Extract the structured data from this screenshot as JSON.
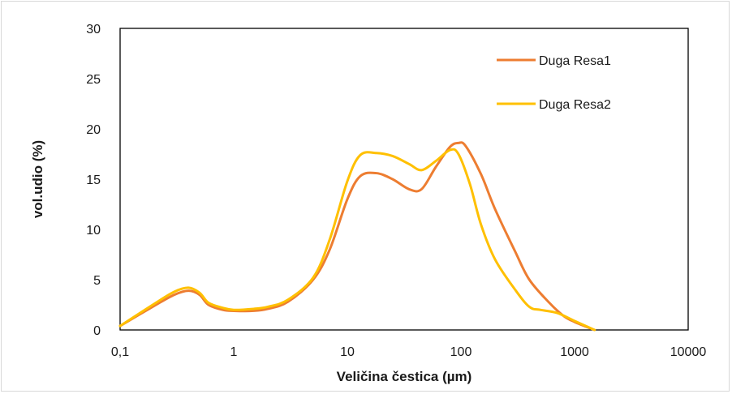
{
  "chart_data": {
    "type": "line",
    "title": "",
    "xlabel": "Veličina čestica (µm)",
    "ylabel": "vol.udio (%)",
    "x_scale": "log",
    "xlim": [
      0.1,
      10000
    ],
    "ylim": [
      0,
      30
    ],
    "x_ticks": [
      0.1,
      1,
      10,
      100,
      1000,
      10000
    ],
    "x_tick_labels": [
      "0,1",
      "1",
      "10",
      "100",
      "1000",
      "10000"
    ],
    "y_ticks": [
      0,
      5,
      10,
      15,
      20,
      25,
      30
    ],
    "y_tick_labels": [
      "0",
      "5",
      "10",
      "15",
      "20",
      "25",
      "30"
    ],
    "grid": false,
    "legend_position": "top-right",
    "series": [
      {
        "name": "Duga Resa1",
        "color": "#ED7D31",
        "points": [
          [
            0.1,
            0.4
          ],
          [
            0.2,
            2.4
          ],
          [
            0.3,
            3.5
          ],
          [
            0.4,
            3.9
          ],
          [
            0.5,
            3.5
          ],
          [
            0.6,
            2.5
          ],
          [
            0.8,
            2.0
          ],
          [
            1.0,
            1.9
          ],
          [
            1.5,
            1.9
          ],
          [
            2.0,
            2.1
          ],
          [
            3.0,
            2.8
          ],
          [
            5.0,
            5.0
          ],
          [
            7.0,
            8.0
          ],
          [
            10.0,
            13.0
          ],
          [
            13.0,
            15.3
          ],
          [
            18.0,
            15.6
          ],
          [
            25.0,
            15.0
          ],
          [
            35.0,
            14.0
          ],
          [
            45.0,
            14.0
          ],
          [
            60.0,
            16.2
          ],
          [
            80.0,
            18.2
          ],
          [
            95.0,
            18.6
          ],
          [
            110.0,
            18.3
          ],
          [
            150.0,
            15.5
          ],
          [
            200.0,
            12.0
          ],
          [
            300.0,
            7.8
          ],
          [
            400.0,
            5.0
          ],
          [
            600.0,
            2.7
          ],
          [
            800.0,
            1.4
          ],
          [
            1000.0,
            0.8
          ],
          [
            1500.0,
            0.0
          ]
        ]
      },
      {
        "name": "Duga Resa2",
        "color": "#FFC000",
        "points": [
          [
            0.1,
            0.4
          ],
          [
            0.2,
            2.6
          ],
          [
            0.3,
            3.8
          ],
          [
            0.4,
            4.2
          ],
          [
            0.5,
            3.7
          ],
          [
            0.6,
            2.7
          ],
          [
            0.8,
            2.2
          ],
          [
            1.0,
            2.0
          ],
          [
            1.5,
            2.1
          ],
          [
            2.0,
            2.3
          ],
          [
            3.0,
            3.0
          ],
          [
            5.0,
            5.2
          ],
          [
            7.0,
            9.0
          ],
          [
            10.0,
            14.8
          ],
          [
            13.0,
            17.4
          ],
          [
            18.0,
            17.6
          ],
          [
            25.0,
            17.3
          ],
          [
            35.0,
            16.5
          ],
          [
            45.0,
            15.9
          ],
          [
            60.0,
            16.8
          ],
          [
            80.0,
            17.9
          ],
          [
            95.0,
            17.5
          ],
          [
            120.0,
            14.5
          ],
          [
            150.0,
            10.5
          ],
          [
            200.0,
            7.0
          ],
          [
            300.0,
            4.0
          ],
          [
            400.0,
            2.3
          ],
          [
            500.0,
            2.0
          ],
          [
            700.0,
            1.7
          ],
          [
            1000.0,
            0.9
          ],
          [
            1500.0,
            0.0
          ]
        ]
      }
    ]
  }
}
